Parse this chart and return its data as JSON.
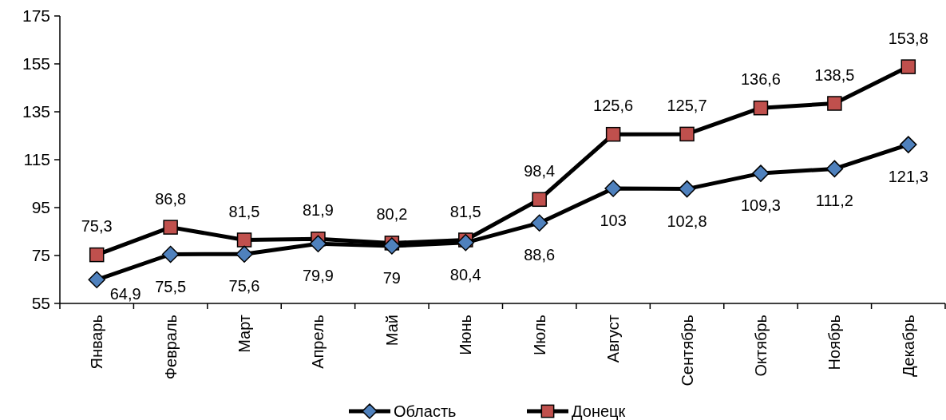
{
  "chart_data": {
    "type": "line",
    "categories": [
      "Январь",
      "Февраль",
      "Март",
      "Апрель",
      "Май",
      "Июнь",
      "Июль",
      "Август",
      "Сентябрь",
      "Октябрь",
      "Ноябрь",
      "Декабрь"
    ],
    "series": [
      {
        "name": "Область",
        "color": "#4f81bd",
        "marker": "diamond",
        "values": [
          64.9,
          75.5,
          75.6,
          79.9,
          79,
          80.4,
          88.6,
          103,
          102.8,
          109.3,
          111.2,
          121.3
        ],
        "value_labels": [
          "64,9",
          "75,5",
          "75,6",
          "79,9",
          "79",
          "80,4",
          "88,6",
          "103",
          "102,8",
          "109,3",
          "111,2",
          "121,3"
        ]
      },
      {
        "name": "Донецк",
        "color": "#c0504d",
        "marker": "square",
        "values": [
          75.3,
          86.8,
          81.5,
          81.9,
          80.2,
          81.5,
          98.4,
          125.6,
          125.7,
          136.6,
          138.5,
          153.8
        ],
        "value_labels": [
          "75,3",
          "86,8",
          "81,5",
          "81,9",
          "80,2",
          "81,5",
          "98,4",
          "125,6",
          "125,7",
          "136,6",
          "138,5",
          "153,8"
        ]
      }
    ],
    "ylim": [
      55,
      175
    ],
    "yticks": [
      55,
      75,
      95,
      115,
      135,
      155,
      175
    ],
    "grid": false,
    "legend": "bottom",
    "line_style": "solid"
  }
}
